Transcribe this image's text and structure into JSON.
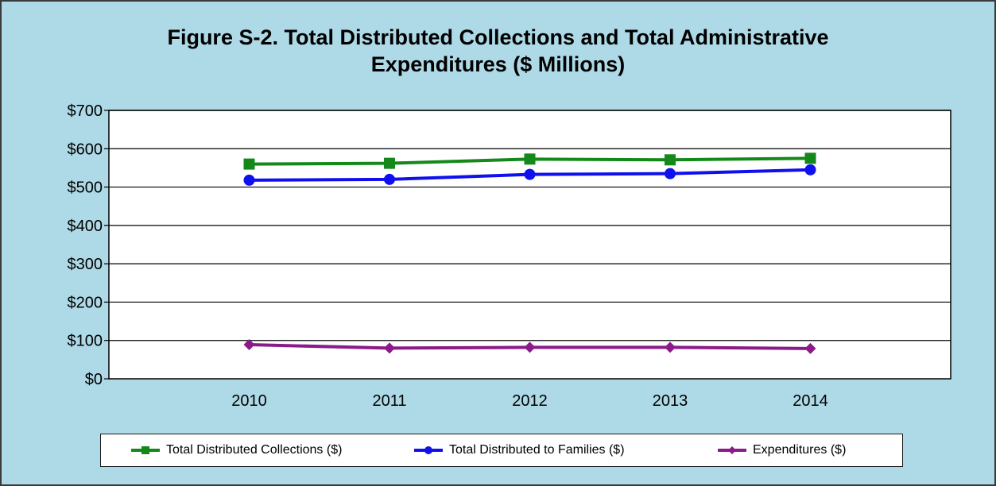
{
  "chart_data": {
    "type": "line",
    "title_line1": "Figure S-2.  Total Distributed Collections and Total Administrative",
    "title_line2": "Expenditures ($ Millions)",
    "categories": [
      "2010",
      "2011",
      "2012",
      "2013",
      "2014"
    ],
    "ylim": [
      0,
      700
    ],
    "yticks": [
      0,
      100,
      200,
      300,
      400,
      500,
      600,
      700
    ],
    "ytick_labels": [
      "$0",
      "$100",
      "$200",
      "$300",
      "$400",
      "$500",
      "$600",
      "$700"
    ],
    "grid": true,
    "legend_position": "bottom",
    "series": [
      {
        "name": "Total Distributed Collections ($)",
        "color": "#14891a",
        "marker": "square",
        "values": [
          560,
          562,
          573,
          571,
          575
        ]
      },
      {
        "name": "Total Distributed to Families ($)",
        "color": "#1010ee",
        "marker": "circle",
        "values": [
          518,
          520,
          533,
          535,
          545
        ]
      },
      {
        "name": "Expenditures ($)",
        "color": "#8b1a8b",
        "marker": "diamond",
        "values": [
          89,
          80,
          82,
          82,
          79
        ]
      }
    ]
  }
}
